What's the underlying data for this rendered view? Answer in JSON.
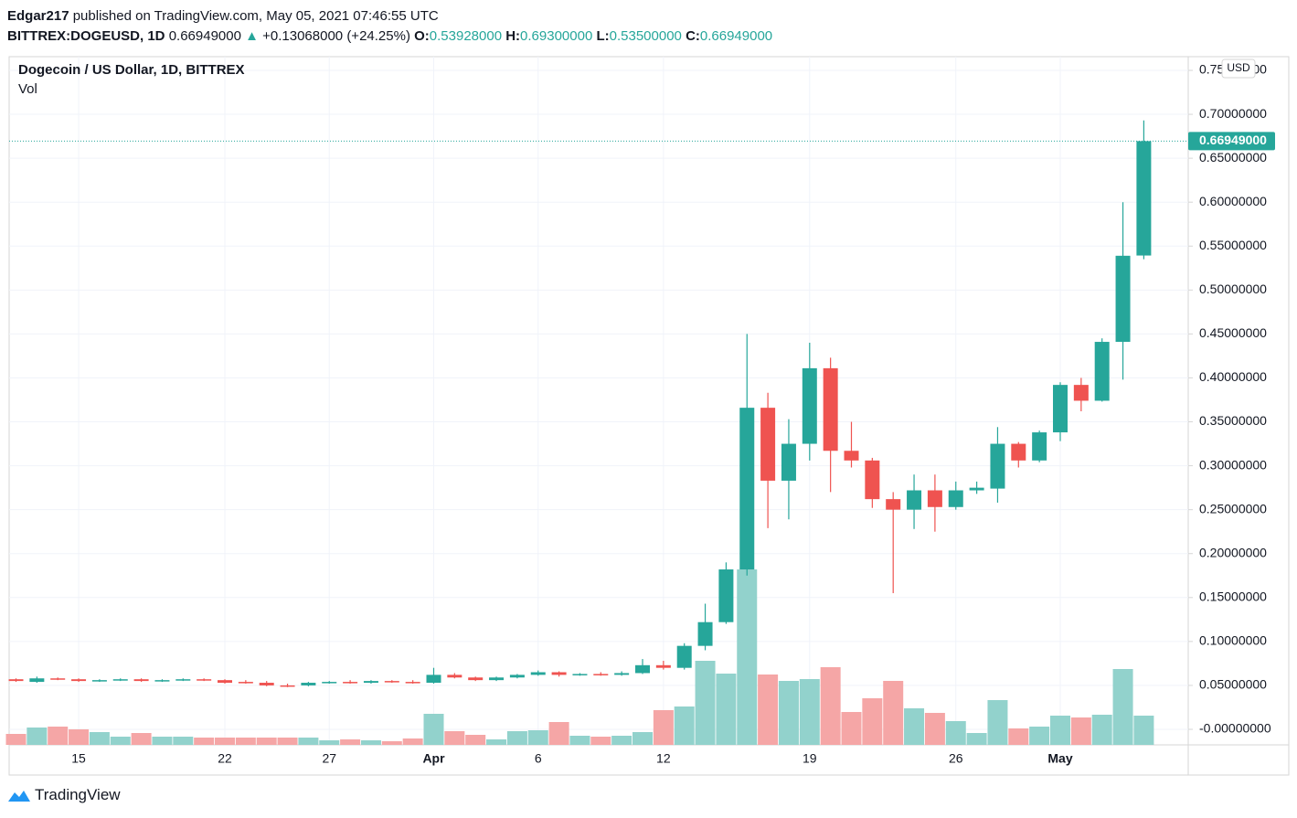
{
  "header": {
    "author": "Edgar217",
    "published": "published on TradingView.com, May 05, 2021 07:46:55 UTC",
    "symbol": "BITTREX:DOGEUSD, 1D",
    "last": "0.66949000",
    "arrow": "▲",
    "change": "+0.13068000 (+24.25%)",
    "o_label": "O:",
    "o": "0.53928000",
    "h_label": "H:",
    "h": "0.69300000",
    "l_label": "L:",
    "l": "0.53500000",
    "c_label": "C:",
    "c": "0.66949000"
  },
  "chart_data": {
    "type": "candlestick",
    "title": "Dogecoin / US Dollar, 1D, BITTREX",
    "volume_label": "Vol",
    "currency": "USD",
    "categories": [
      null,
      null,
      null,
      "15",
      null,
      null,
      null,
      null,
      null,
      null,
      "22",
      null,
      null,
      null,
      null,
      "27",
      null,
      null,
      null,
      null,
      "Apr",
      null,
      null,
      null,
      null,
      "6",
      null,
      null,
      null,
      null,
      null,
      "12",
      null,
      null,
      null,
      null,
      null,
      null,
      "19",
      null,
      null,
      null,
      null,
      null,
      null,
      "26",
      null,
      null,
      null,
      null,
      "May",
      null,
      null,
      null,
      null
    ],
    "series": [
      {
        "name": "open",
        "values": [
          0.057,
          0.054,
          0.058,
          0.057,
          0.055,
          0.056,
          0.057,
          0.055,
          0.056,
          0.057,
          0.056,
          0.054,
          0.053,
          0.05,
          0.05,
          0.053,
          0.054,
          0.053,
          0.055,
          0.054,
          0.053,
          0.062,
          0.059,
          0.056,
          0.059,
          0.062,
          0.065,
          0.062,
          0.063,
          0.062,
          0.064,
          0.073,
          0.07,
          0.095,
          0.122,
          0.182,
          0.366,
          0.283,
          0.325,
          0.411,
          0.317,
          0.306,
          0.262,
          0.25,
          0.272,
          0.253,
          0.272,
          0.274,
          0.325,
          0.306,
          0.338,
          0.392,
          0.374,
          0.441,
          0.53928
        ]
      },
      {
        "name": "high",
        "values": [
          0.058,
          0.06,
          0.059,
          0.058,
          0.057,
          0.058,
          0.058,
          0.057,
          0.058,
          0.058,
          0.057,
          0.056,
          0.055,
          0.052,
          0.054,
          0.055,
          0.056,
          0.056,
          0.056,
          0.056,
          0.07,
          0.064,
          0.06,
          0.06,
          0.063,
          0.067,
          0.066,
          0.064,
          0.065,
          0.066,
          0.08,
          0.078,
          0.098,
          0.143,
          0.19,
          0.45,
          0.383,
          0.353,
          0.44,
          0.423,
          0.35,
          0.309,
          0.27,
          0.29,
          0.29,
          0.282,
          0.282,
          0.344,
          0.327,
          0.34,
          0.395,
          0.4,
          0.445,
          0.6,
          0.693
        ]
      },
      {
        "name": "low",
        "values": [
          0.054,
          0.053,
          0.056,
          0.054,
          0.054,
          0.055,
          0.054,
          0.054,
          0.055,
          0.055,
          0.052,
          0.052,
          0.049,
          0.048,
          0.049,
          0.052,
          0.052,
          0.052,
          0.053,
          0.052,
          0.052,
          0.058,
          0.055,
          0.055,
          0.058,
          0.061,
          0.06,
          0.061,
          0.061,
          0.061,
          0.063,
          0.068,
          0.068,
          0.09,
          0.12,
          0.175,
          0.229,
          0.239,
          0.306,
          0.27,
          0.298,
          0.252,
          0.155,
          0.228,
          0.225,
          0.25,
          0.268,
          0.258,
          0.298,
          0.304,
          0.328,
          0.362,
          0.373,
          0.398,
          0.535
        ]
      },
      {
        "name": "close",
        "values": [
          0.055,
          0.058,
          0.057,
          0.055,
          0.056,
          0.057,
          0.055,
          0.056,
          0.057,
          0.056,
          0.053,
          0.053,
          0.05,
          0.049,
          0.053,
          0.054,
          0.053,
          0.055,
          0.054,
          0.053,
          0.062,
          0.059,
          0.056,
          0.059,
          0.062,
          0.065,
          0.062,
          0.063,
          0.062,
          0.064,
          0.073,
          0.07,
          0.095,
          0.122,
          0.182,
          0.366,
          0.283,
          0.325,
          0.411,
          0.317,
          0.306,
          0.262,
          0.25,
          0.272,
          0.253,
          0.272,
          0.275,
          0.325,
          0.306,
          0.338,
          0.392,
          0.374,
          0.441,
          0.539,
          0.66949
        ]
      },
      {
        "name": "volume",
        "values": [
          12,
          19,
          20,
          17,
          14,
          9,
          13,
          9,
          9,
          8,
          8,
          8,
          8,
          8,
          8,
          5,
          6,
          5,
          4,
          7,
          34,
          15,
          11,
          6,
          15,
          16,
          25,
          10,
          9,
          10,
          14,
          38,
          42,
          92,
          78,
          192,
          77,
          70,
          72,
          85,
          36,
          51,
          70,
          40,
          35,
          26,
          13,
          49,
          18,
          20,
          32,
          30,
          33,
          83,
          32
        ]
      }
    ],
    "up_color": "#26a69a",
    "down_color": "#ef5350",
    "up_volume_color": "#92d2cc",
    "down_volume_color": "#f5a6a6",
    "last_price": {
      "value": 0.66949,
      "label": "0.66949000"
    },
    "ylim": [
      -0.0177,
      0.7656
    ],
    "yticks": [
      {
        "value": 0,
        "label": "-0.00000000"
      },
      {
        "value": 0.05,
        "label": "0.05000000"
      },
      {
        "value": 0.1,
        "label": "0.10000000"
      },
      {
        "value": 0.15,
        "label": "0.15000000"
      },
      {
        "value": 0.2,
        "label": "0.20000000"
      },
      {
        "value": 0.25,
        "label": "0.25000000"
      },
      {
        "value": 0.3,
        "label": "0.30000000"
      },
      {
        "value": 0.35,
        "label": "0.35000000"
      },
      {
        "value": 0.4,
        "label": "0.40000000"
      },
      {
        "value": 0.45,
        "label": "0.45000000"
      },
      {
        "value": 0.5,
        "label": "0.50000000"
      },
      {
        "value": 0.55,
        "label": "0.55000000"
      },
      {
        "value": 0.6,
        "label": "0.60000000"
      },
      {
        "value": 0.65,
        "label": "0.65000000"
      },
      {
        "value": 0.7,
        "label": "0.70000000"
      },
      {
        "value": 0.75,
        "label": "0.75000000"
      }
    ],
    "grid": true
  },
  "footer": {
    "brand": "TradingView"
  }
}
